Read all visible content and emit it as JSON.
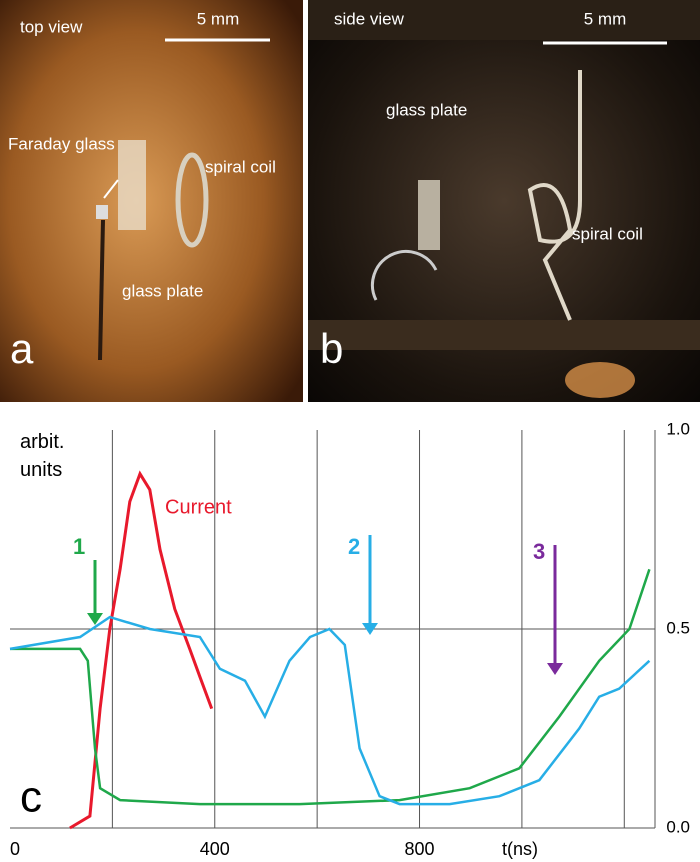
{
  "panels": [
    {
      "letter": "a",
      "view": "top view",
      "scale": "5 mm",
      "labels": [
        "Faraday glass",
        "glass plate",
        "spiral coil"
      ]
    },
    {
      "letter": "b",
      "view": "side view",
      "scale": "5 mm",
      "labels": [
        "glass plate",
        "spiral coil"
      ]
    }
  ],
  "chart_data": {
    "type": "line",
    "letter": "c",
    "y_label": "arbit. units",
    "x_label": "t(ns)",
    "xlim": [
      0,
      1260
    ],
    "xticks": [
      0,
      400,
      800
    ],
    "x_grid": [
      200,
      400,
      600,
      800,
      1000,
      1200
    ],
    "ylim": [
      0,
      1
    ],
    "yticks": [
      {
        "value": 1,
        "label": "1.0"
      },
      {
        "value": 0.5,
        "label": "0.5"
      },
      {
        "value": 0,
        "label": "0.0"
      }
    ],
    "series": [
      {
        "name": "Current",
        "color": "#e8192c",
        "x": [
          117,
          156,
          176,
          195,
          215,
          234,
          254,
          273,
          293,
          322,
          351,
          371,
          394
        ],
        "values": [
          0,
          0.03,
          0.3,
          0.5,
          0.65,
          0.82,
          0.89,
          0.85,
          0.7,
          0.55,
          0.45,
          0.38,
          0.3
        ]
      },
      {
        "color": "#1fa84a",
        "x": [
          0,
          137,
          152,
          166,
          176,
          215,
          371,
          566,
          761,
          898,
          995,
          1073,
          1151,
          1210,
          1249
        ],
        "values": [
          0.45,
          0.45,
          0.42,
          0.2,
          0.1,
          0.07,
          0.06,
          0.06,
          0.07,
          0.1,
          0.15,
          0.28,
          0.42,
          0.5,
          0.65
        ]
      },
      {
        "color": "#27aee6",
        "x": [
          0,
          137,
          195,
          273,
          371,
          410,
          459,
          498,
          546,
          586,
          624,
          654,
          683,
          722,
          761,
          859,
          956,
          1034,
          1112,
          1151,
          1190,
          1249
        ],
        "values": [
          0.45,
          0.48,
          0.53,
          0.5,
          0.48,
          0.4,
          0.37,
          0.28,
          0.42,
          0.48,
          0.5,
          0.46,
          0.2,
          0.08,
          0.06,
          0.06,
          0.08,
          0.12,
          0.25,
          0.33,
          0.35,
          0.42
        ]
      }
    ],
    "annotations": [
      {
        "text": "1",
        "color": "#1fa84a"
      },
      {
        "text": "2",
        "color": "#27aee6"
      },
      {
        "text": "3",
        "color": "#7a2a9c"
      }
    ]
  }
}
